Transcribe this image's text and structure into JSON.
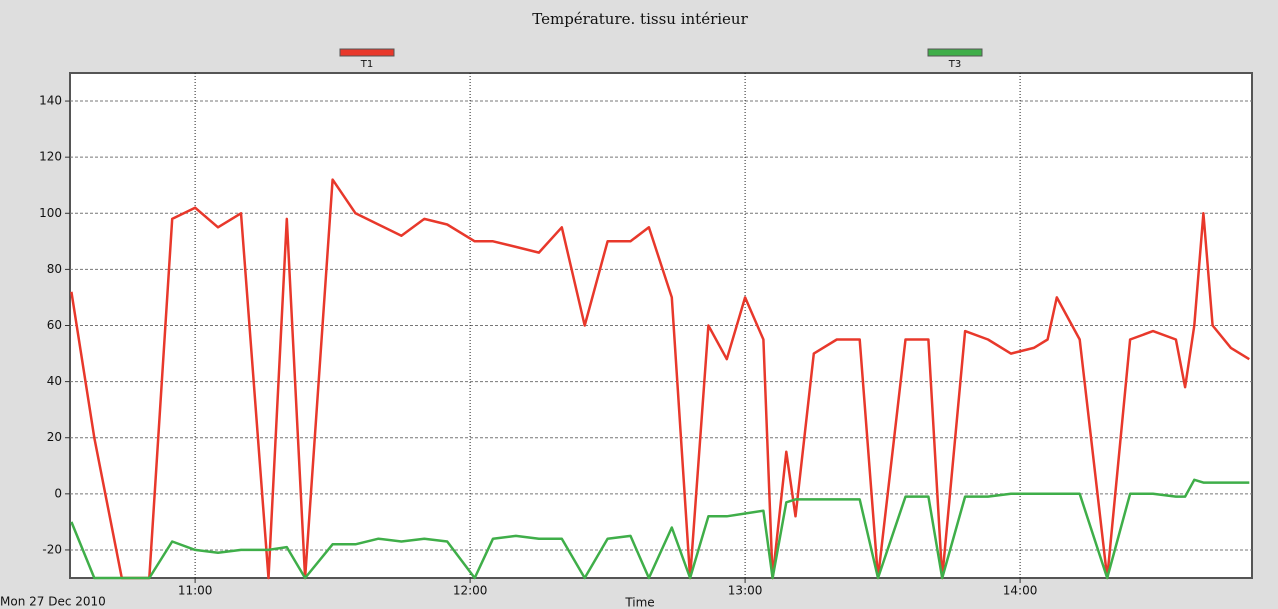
{
  "chart_data": {
    "type": "line",
    "title": "Température. tissu intérieur",
    "date_label": "Mon 27 Dec 2010",
    "x_label": "Time",
    "x": [
      633,
      638,
      644,
      650,
      655,
      660,
      665,
      670,
      676,
      680,
      684,
      690,
      695,
      700,
      705,
      710,
      715,
      721,
      725,
      730,
      735,
      740,
      745,
      750,
      755,
      759,
      764,
      768,
      772,
      776,
      780,
      784,
      786,
      789,
      791,
      795,
      800,
      805,
      809,
      815,
      820,
      823,
      828,
      833,
      838,
      843,
      846,
      848,
      853,
      859,
      864,
      869,
      874,
      876,
      878,
      880,
      882,
      886,
      890
    ],
    "series": [
      {
        "name": "T1",
        "color": "#e8382b",
        "values": [
          72,
          20,
          -30,
          -30,
          98,
          102,
          95,
          100,
          -30,
          98,
          -30,
          112,
          100,
          96,
          92,
          98,
          96,
          90,
          90,
          88,
          86,
          95,
          60,
          90,
          90,
          95,
          70,
          -30,
          60,
          48,
          70,
          55,
          -30,
          15,
          -8,
          50,
          55,
          55,
          -30,
          55,
          55,
          -30,
          58,
          55,
          50,
          52,
          55,
          70,
          55,
          -30,
          55,
          58,
          55,
          38,
          60,
          100,
          60,
          52,
          48
        ]
      },
      {
        "name": "T3",
        "color": "#3fae49",
        "values": [
          -10,
          -30,
          -30,
          -30,
          -17,
          -20,
          -21,
          -20,
          -20,
          -19,
          -30,
          -18,
          -18,
          -16,
          -17,
          -16,
          -17,
          -30,
          -16,
          -15,
          -16,
          -16,
          -30,
          -16,
          -15,
          -30,
          -12,
          -30,
          -8,
          -8,
          -7,
          -6,
          -30,
          -3,
          -2,
          -2,
          -2,
          -2,
          -30,
          -1,
          -1,
          -30,
          -1,
          -1,
          0,
          0,
          0,
          0,
          0,
          -30,
          0,
          0,
          -1,
          -1,
          5,
          4,
          4,
          4,
          4
        ]
      }
    ],
    "xlim": [
      632.7,
      890.6
    ],
    "xticks": [
      {
        "value": 660,
        "label": "11:00"
      },
      {
        "value": 720,
        "label": "12:00"
      },
      {
        "value": 780,
        "label": "13:00"
      },
      {
        "value": 840,
        "label": "14:00"
      }
    ],
    "ylim": [
      -30,
      150
    ],
    "yticks": [
      -20,
      0,
      20,
      40,
      60,
      80,
      100,
      120,
      140
    ],
    "grid": true
  }
}
